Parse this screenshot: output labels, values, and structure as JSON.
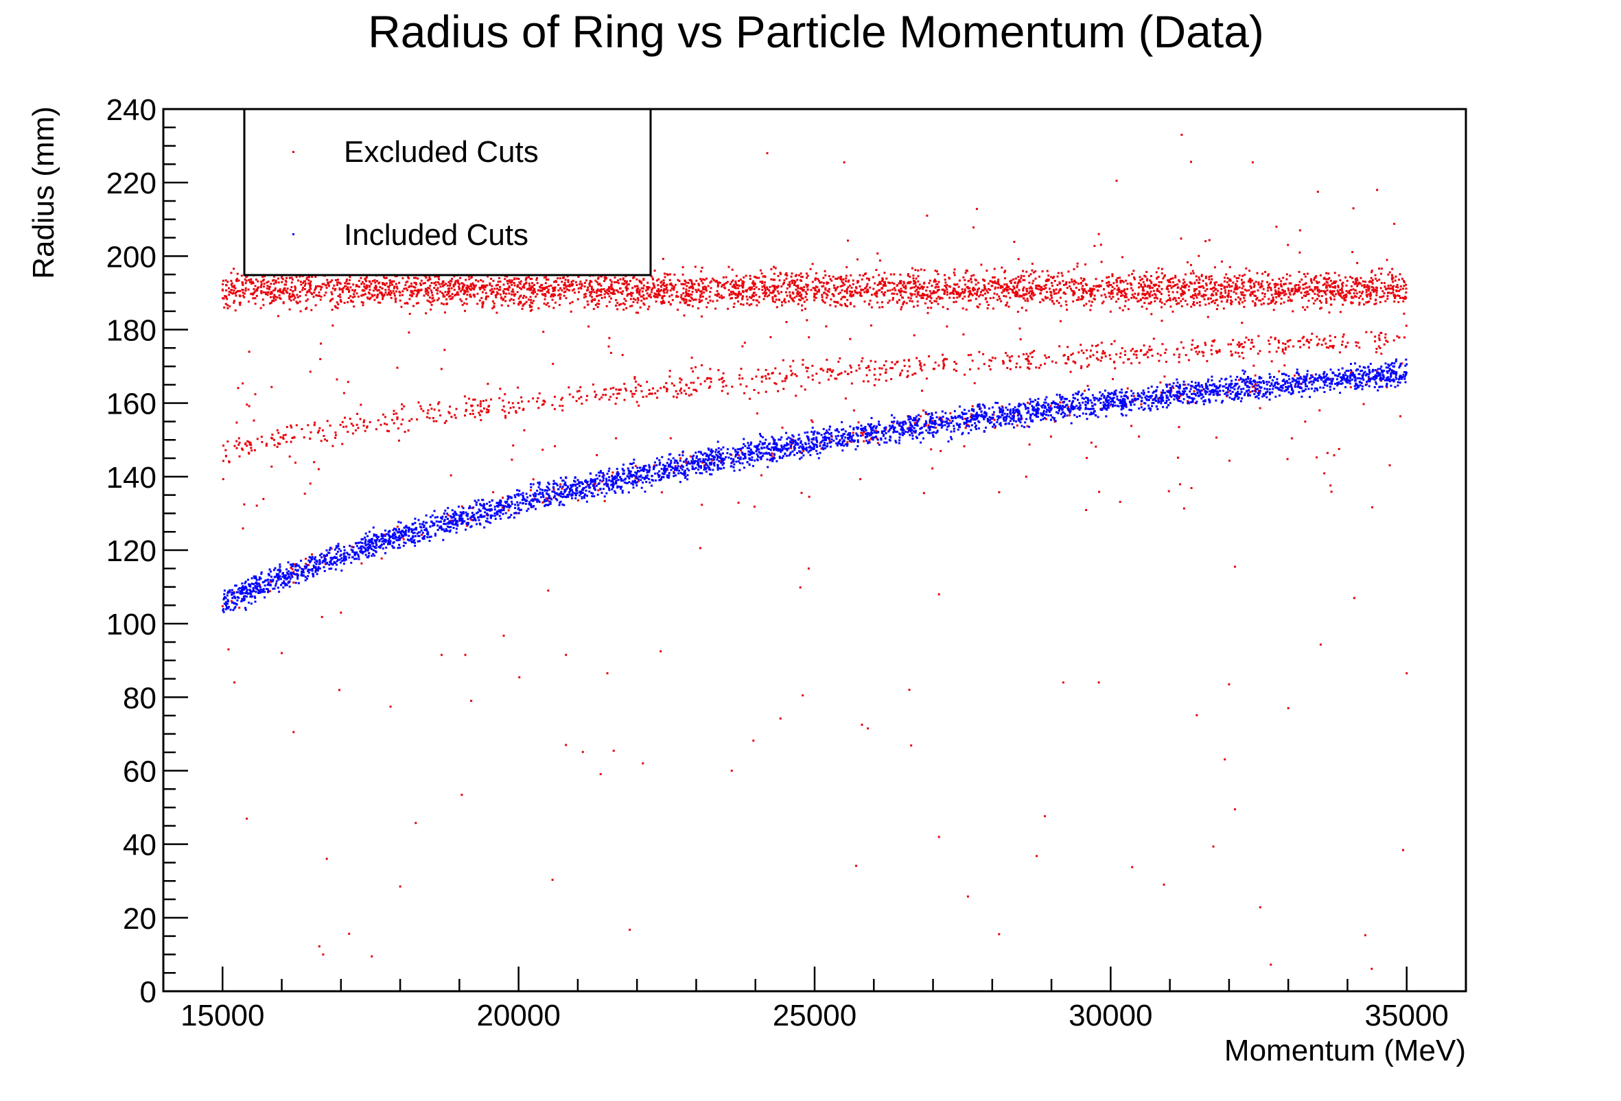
{
  "chart_data": {
    "type": "scatter",
    "title": "Radius of Ring vs Particle Momentum (Data)",
    "xlabel": "Momentum (MeV)",
    "ylabel": "Radius (mm)",
    "xlim": [
      14000,
      36000
    ],
    "ylim": [
      0,
      240
    ],
    "x_ticks": [
      15000,
      20000,
      25000,
      30000,
      35000
    ],
    "y_ticks": [
      0,
      20,
      40,
      60,
      80,
      100,
      120,
      140,
      160,
      180,
      200,
      220,
      240
    ],
    "grid": false,
    "legend_position": "top-left",
    "series": [
      {
        "name": "Excluded Cuts",
        "color": "#e8000b",
        "bands": [
          {
            "x_range": [
              15000,
              35000
            ],
            "y_center": 191,
            "y_spread": 3.5,
            "n": 3600
          },
          {
            "x_range": [
              15000,
              35000
            ],
            "curve": "y = 200 - 8.0e5 / x",
            "y_spread": 2.5,
            "n": 800
          },
          {
            "x_range": [
              15000,
              35000
            ],
            "curve": "y = 215 - 1.64e6 / x",
            "y_spread": 2.5,
            "n": 260
          }
        ],
        "scatter_background": {
          "x_range": [
            15000,
            35000
          ],
          "y_range": [
            0,
            235
          ],
          "n": 320
        },
        "points": [
          [
            31200,
            233
          ],
          [
            24200,
            228
          ],
          [
            25500,
            225.5
          ],
          [
            32400,
            225.5
          ],
          [
            22100,
            226.5
          ],
          [
            30100,
            220.5
          ],
          [
            33500,
            217.5
          ],
          [
            34500,
            218
          ],
          [
            34100,
            213
          ],
          [
            26900,
            211
          ],
          [
            29800,
            206
          ],
          [
            32800,
            208
          ],
          [
            33200,
            207
          ],
          [
            16700,
            10
          ],
          [
            18000,
            28.5
          ],
          [
            30900,
            29
          ],
          [
            32100,
            49.5
          ],
          [
            27100,
            42
          ],
          [
            23600,
            60
          ],
          [
            22100,
            62
          ],
          [
            20800,
            67
          ],
          [
            16200,
            70.5
          ],
          [
            25800,
            72.5
          ],
          [
            25900,
            71.5
          ],
          [
            33000,
            77
          ],
          [
            19200,
            79
          ],
          [
            24800,
            80.5
          ],
          [
            26600,
            82
          ],
          [
            32000,
            83.5
          ],
          [
            29200,
            84
          ],
          [
            29800,
            84
          ],
          [
            35000,
            86.5
          ],
          [
            15200,
            84
          ],
          [
            21500,
            86.5
          ],
          [
            18700,
            91.5
          ],
          [
            19100,
            91.5
          ],
          [
            20800,
            91.5
          ],
          [
            16000,
            92
          ],
          [
            22400,
            92.5
          ],
          [
            15100,
            93
          ],
          [
            27100,
            108
          ],
          [
            32100,
            115.5
          ],
          [
            24900,
            115
          ],
          [
            20500,
            109
          ],
          [
            17000,
            103
          ]
        ]
      },
      {
        "name": "Included Cuts",
        "color": "#0000ff",
        "bands": [
          {
            "x_range": [
              15000,
              35000
            ],
            "curve": "y = 215 - 1.64e6 / x",
            "y_spread": 2.5,
            "n": 3800
          }
        ]
      }
    ]
  }
}
